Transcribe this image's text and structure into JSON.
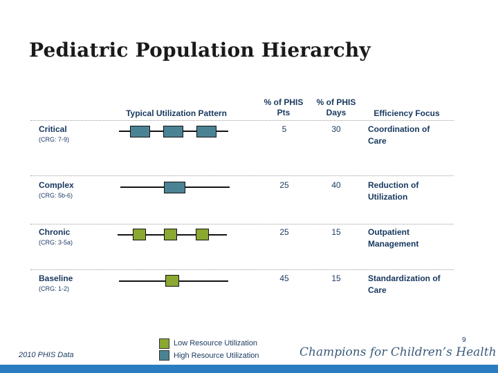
{
  "slide": {
    "title": "Pediatric Population Hierarchy",
    "page_number": "9",
    "source": "2010 PHIS Data",
    "tagline": "Champions for Children’s Health"
  },
  "headers": {
    "pattern": "Typical Utilization Pattern",
    "pts_line1": "% of PHIS",
    "pts_line2": "Pts",
    "days_line1": "% of PHIS",
    "days_line2": "Days",
    "focus": "Efficiency Focus"
  },
  "rows": [
    {
      "name": "Critical",
      "code": "(CRG: 7-9)",
      "pts": "5",
      "days": "30",
      "focus_line1": "Coordination of",
      "focus_line2": "Care",
      "pattern": "high",
      "boxes": 3
    },
    {
      "name": "Complex",
      "code": "(CRG: 5b-6)",
      "pts": "25",
      "days": "40",
      "focus_line1": "Reduction of",
      "focus_line2": "Utilization",
      "pattern": "high",
      "boxes": 1
    },
    {
      "name": "Chronic",
      "code": "(CRG: 3-5a)",
      "pts": "25",
      "days": "15",
      "focus_line1": "Outpatient",
      "focus_line2": "Management",
      "pattern": "low",
      "boxes": 3
    },
    {
      "name": "Baseline",
      "code": "(CRG: 1-2)",
      "pts": "45",
      "days": "15",
      "focus_line1": "Standardization of",
      "focus_line2": "Care",
      "pattern": "low",
      "boxes": 1
    }
  ],
  "legend": {
    "low_label": "Low Resource Utilization",
    "high_label": "High Resource Utilization"
  },
  "colors": {
    "high_resource": "#4a8494",
    "low_resource": "#8aa832",
    "text_blue": "#17375e",
    "bottom_bar": "#2a7bbf"
  }
}
